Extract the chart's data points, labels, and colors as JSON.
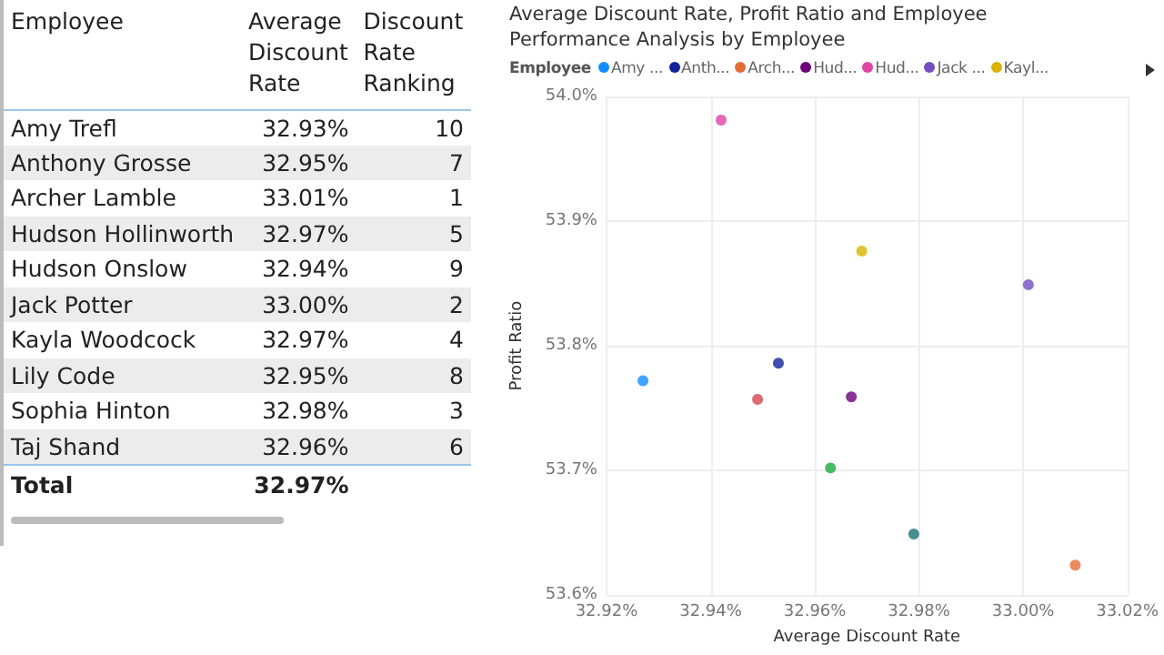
{
  "chart_data": [
    {
      "type": "other",
      "xlabel": "Employee",
      "categories": [
        "Amy Trefl",
        "Anthony Grosse",
        "Archer Lamble",
        "Hudson Hollinworth",
        "Hudson Onslow",
        "Jack Potter",
        "Kayla Woodcock",
        "Lily Code",
        "Sophia Hinton",
        "Taj Shand"
      ],
      "series": [
        {
          "name": "Average Discount Rate",
          "values": [
            32.93,
            32.95,
            33.01,
            32.97,
            32.94,
            33.0,
            32.97,
            32.95,
            32.98,
            32.96
          ],
          "value_labels": [
            "32.93%",
            "32.95%",
            "33.01%",
            "32.97%",
            "32.94%",
            "33.00%",
            "32.97%",
            "32.95%",
            "32.98%",
            "32.96%"
          ]
        },
        {
          "name": "Discount Rate Ranking",
          "values": [
            10,
            7,
            1,
            5,
            9,
            2,
            4,
            8,
            3,
            6
          ],
          "value_labels": [
            "10",
            "7",
            "1",
            "5",
            "9",
            "2",
            "4",
            "8",
            "3",
            "6"
          ]
        }
      ],
      "annotations": [
        "Total",
        "32.97%"
      ]
    },
    {
      "type": "scatter",
      "title": "Average Discount Rate, Profit Ratio and Employee Performance Analysis by Employee",
      "xlabel": "Average Discount Rate",
      "ylabel": "Profit Ratio",
      "legend_title": "Employee",
      "legend": "top left",
      "marker": "circle",
      "grid": true,
      "xlim": [
        32.92,
        33.02
      ],
      "xticks": [
        {
          "value": 32.92,
          "label": "32.92%"
        },
        {
          "value": 32.94,
          "label": "32.94%"
        },
        {
          "value": 32.96,
          "label": "32.96%"
        },
        {
          "value": 32.98,
          "label": "32.98%"
        },
        {
          "value": 33.0,
          "label": "33.00%"
        },
        {
          "value": 33.02,
          "label": "33.02%"
        }
      ],
      "ylim": [
        53.6,
        54.0
      ],
      "yticks": [
        {
          "value": 53.6,
          "label": "53.6%"
        },
        {
          "value": 53.7,
          "label": "53.7%"
        },
        {
          "value": 53.8,
          "label": "53.8%"
        },
        {
          "value": 53.9,
          "label": "53.9%"
        },
        {
          "value": 54.0,
          "label": "54.0%"
        }
      ],
      "series": [
        {
          "name": "Amy ...",
          "color": "#118dff",
          "x": [
            32.927
          ],
          "values": [
            53.772
          ]
        },
        {
          "name": "Anth...",
          "color": "#12239e",
          "x": [
            32.953
          ],
          "values": [
            53.786
          ]
        },
        {
          "name": "Arch...",
          "color": "#e66c37",
          "x": [
            33.01
          ],
          "values": [
            53.624
          ]
        },
        {
          "name": "Hud...",
          "color": "#6b007b",
          "x": [
            32.967
          ],
          "values": [
            53.759
          ]
        },
        {
          "name": "Hud...",
          "color": "#e044a7",
          "x": [
            32.942
          ],
          "values": [
            53.981
          ]
        },
        {
          "name": "Jack ...",
          "color": "#744ec2",
          "x": [
            33.001
          ],
          "values": [
            53.849
          ]
        },
        {
          "name": "Kayl...",
          "color": "#d9b300",
          "x": [
            32.969
          ],
          "values": [
            53.876
          ]
        },
        {
          "color": "#d64550",
          "x": [
            32.949
          ],
          "values": [
            53.757
          ]
        },
        {
          "color": "#197278",
          "x": [
            32.979
          ],
          "values": [
            53.649
          ]
        },
        {
          "color": "#1aab40",
          "x": [
            32.963
          ],
          "values": [
            53.702
          ]
        }
      ]
    }
  ]
}
